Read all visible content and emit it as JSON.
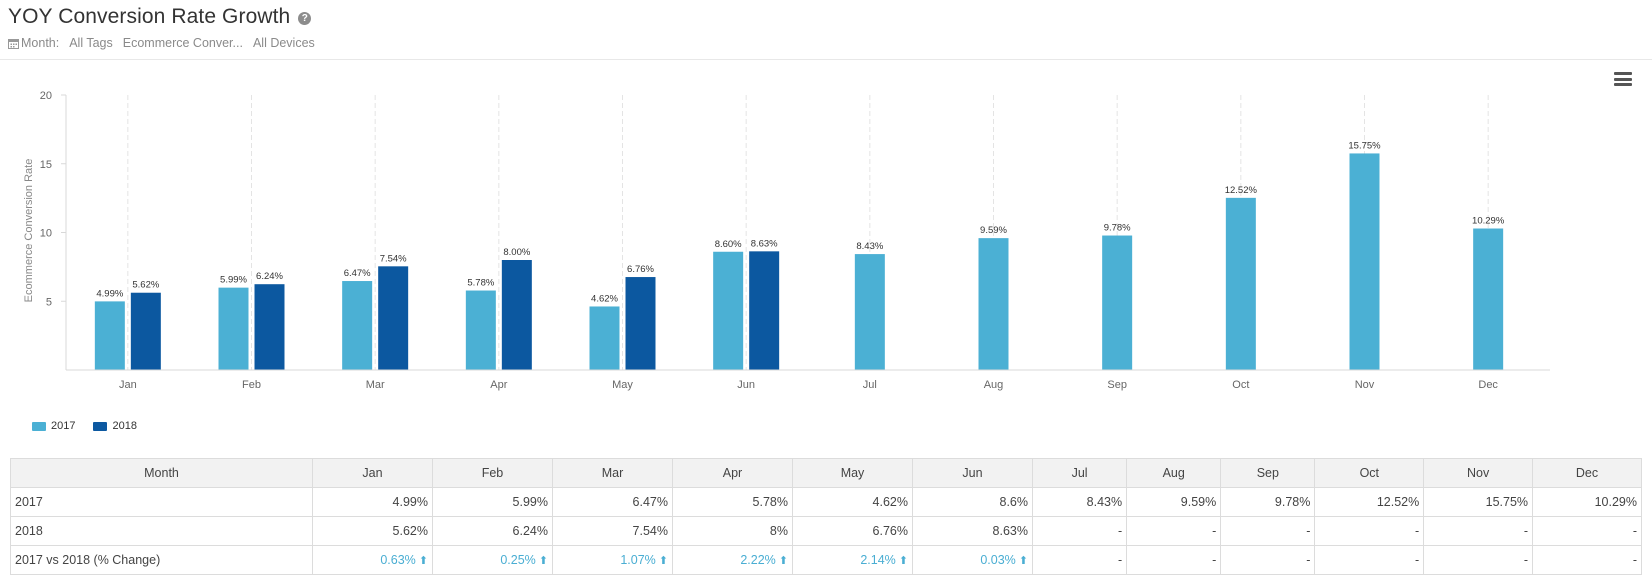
{
  "header": {
    "title": "YOY Conversion Rate Growth",
    "filter_label": "Month:",
    "filters": [
      "All Tags",
      "Ecommerce Conver...",
      "All Devices"
    ]
  },
  "colors": {
    "series_2017": "#4bb0d4",
    "series_2018": "#0c58a0",
    "change_text": "#4aaed3"
  },
  "chart_data": {
    "type": "bar",
    "categories": [
      "Jan",
      "Feb",
      "Mar",
      "Apr",
      "May",
      "Jun",
      "Jul",
      "Aug",
      "Sep",
      "Oct",
      "Nov",
      "Dec"
    ],
    "series": [
      {
        "name": "2017",
        "values": [
          4.99,
          5.99,
          6.47,
          5.78,
          4.62,
          8.6,
          8.43,
          9.59,
          9.78,
          12.52,
          15.75,
          10.29
        ],
        "labels": [
          "4.99%",
          "5.99%",
          "6.47%",
          "5.78%",
          "4.62%",
          "8.60%",
          "8.43%",
          "9.59%",
          "9.78%",
          "12.52%",
          "15.75%",
          "10.29%"
        ]
      },
      {
        "name": "2018",
        "values": [
          5.62,
          6.24,
          7.54,
          8.0,
          6.76,
          8.63,
          null,
          null,
          null,
          null,
          null,
          null
        ],
        "labels": [
          "5.62%",
          "6.24%",
          "7.54%",
          "8.00%",
          "6.76%",
          "8.63%",
          null,
          null,
          null,
          null,
          null,
          null
        ]
      }
    ],
    "ylabel": "Ecommerce Conversion Rate",
    "xlabel": "",
    "ylim": [
      0,
      20
    ],
    "yticks": [
      "5",
      "10",
      "15",
      "20"
    ],
    "grid": "vertical dashed",
    "legend": "bottom-left"
  },
  "table": {
    "headers": [
      "Month",
      "Jan",
      "Feb",
      "Mar",
      "Apr",
      "May",
      "Jun",
      "Jul",
      "Aug",
      "Sep",
      "Oct",
      "Nov",
      "Dec"
    ],
    "rows": [
      {
        "label": "2017",
        "cells": [
          "4.99%",
          "5.99%",
          "6.47%",
          "5.78%",
          "4.62%",
          "8.6%",
          "8.43%",
          "9.59%",
          "9.78%",
          "12.52%",
          "15.75%",
          "10.29%"
        ]
      },
      {
        "label": "2018",
        "cells": [
          "5.62%",
          "6.24%",
          "7.54%",
          "8%",
          "6.76%",
          "8.63%",
          "-",
          "-",
          "-",
          "-",
          "-",
          "-"
        ]
      },
      {
        "label": "2017 vs 2018 (% Change)",
        "cells": [
          "0.63%",
          "0.25%",
          "1.07%",
          "2.22%",
          "2.14%",
          "0.03%",
          "-",
          "-",
          "-",
          "-",
          "-",
          "-"
        ]
      }
    ],
    "change_arrow": "arrow-up-icon"
  },
  "icons": {
    "help": "question-circle-icon",
    "menu": "hamburger-menu-icon",
    "calendar": "calendar-icon"
  }
}
